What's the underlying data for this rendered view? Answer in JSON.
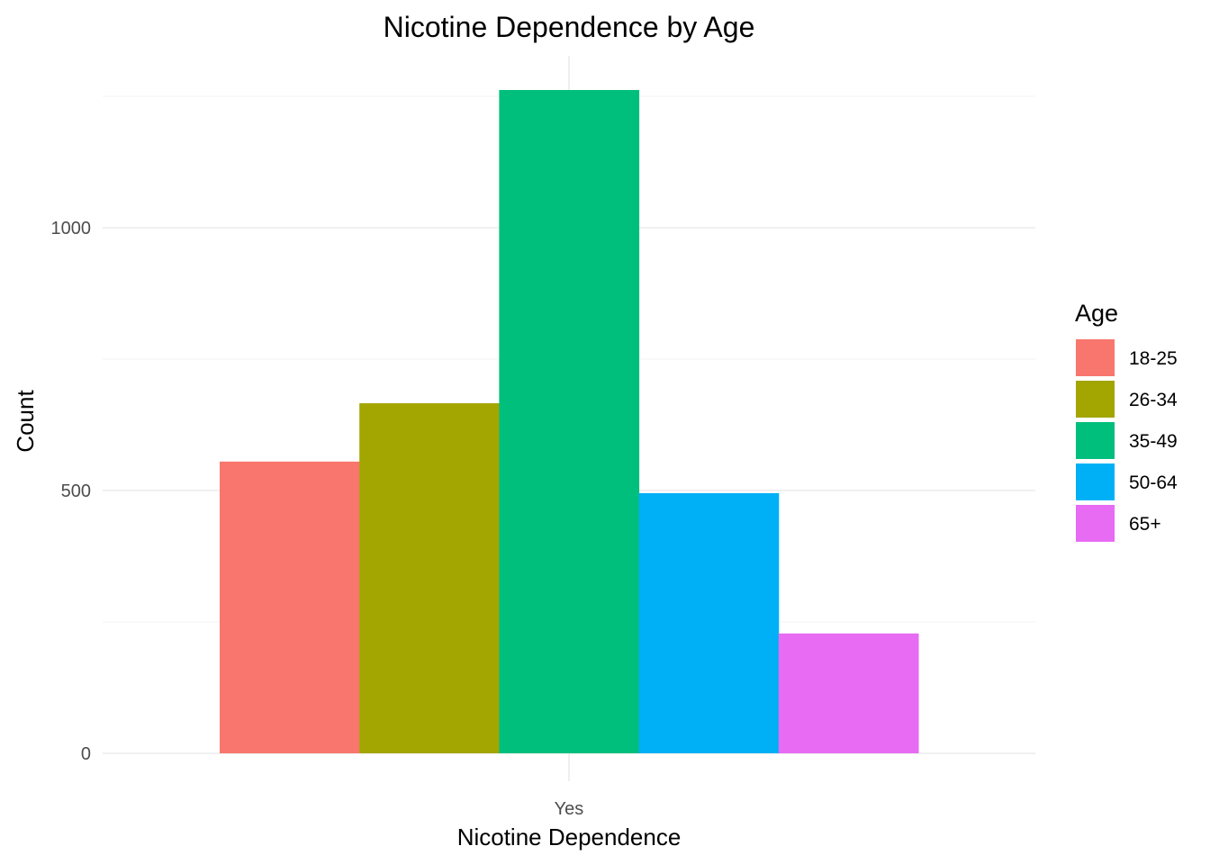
{
  "chart_data": {
    "type": "bar",
    "title": "Nicotine Dependence by Age",
    "xlabel": "Nicotine Dependence",
    "ylabel": "Count",
    "categories": [
      "Yes"
    ],
    "series": [
      {
        "name": "18-25",
        "values": [
          555
        ],
        "color": "#F8766D"
      },
      {
        "name": "26-34",
        "values": [
          666
        ],
        "color": "#A3A500"
      },
      {
        "name": "35-49",
        "values": [
          1262
        ],
        "color": "#00BF7D"
      },
      {
        "name": "50-64",
        "values": [
          495
        ],
        "color": "#00B0F6"
      },
      {
        "name": "65+",
        "values": [
          228
        ],
        "color": "#E76BF3"
      }
    ],
    "ylim": [
      0,
      1300
    ],
    "yticks": [
      0,
      500,
      1000
    ],
    "yticks_labels": [
      "0",
      "500",
      "1000"
    ],
    "grid": true,
    "legend": {
      "title": "Age",
      "position": "right"
    }
  }
}
